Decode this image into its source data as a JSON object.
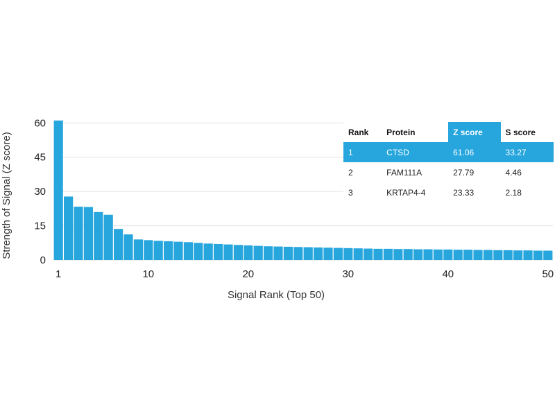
{
  "chart_data": {
    "type": "bar",
    "xlabel": "Signal Rank (Top 50)",
    "ylabel": "Strength of Signal (Z score)",
    "ylim": [
      0,
      61
    ],
    "xlim": [
      1,
      50
    ],
    "yticks": [
      0,
      15,
      30,
      45,
      60
    ],
    "xticks": [
      1,
      10,
      20,
      30,
      40,
      50
    ],
    "bar_color": "#27a6de",
    "grid": true,
    "x": [
      1,
      2,
      3,
      4,
      5,
      6,
      7,
      8,
      9,
      10,
      11,
      12,
      13,
      14,
      15,
      16,
      17,
      18,
      19,
      20,
      21,
      22,
      23,
      24,
      25,
      26,
      27,
      28,
      29,
      30,
      31,
      32,
      33,
      34,
      35,
      36,
      37,
      38,
      39,
      40,
      41,
      42,
      43,
      44,
      45,
      46,
      47,
      48,
      49,
      50
    ],
    "values": [
      61.06,
      27.79,
      23.33,
      23.2,
      21.0,
      19.8,
      13.6,
      11.2,
      9.0,
      8.7,
      8.4,
      8.2,
      8.0,
      7.8,
      7.5,
      7.2,
      7.0,
      6.8,
      6.6,
      6.4,
      6.2,
      6.0,
      5.9,
      5.8,
      5.7,
      5.6,
      5.5,
      5.4,
      5.3,
      5.2,
      5.1,
      5.0,
      4.9,
      4.9,
      4.8,
      4.8,
      4.7,
      4.7,
      4.6,
      4.6,
      4.5,
      4.5,
      4.4,
      4.4,
      4.3,
      4.3,
      4.2,
      4.2,
      4.1,
      4.1
    ]
  },
  "table": {
    "headers": [
      "Rank",
      "Protein",
      "Z score",
      "S score"
    ],
    "highlight_color": "#27a6de",
    "rows": [
      {
        "rank": "1",
        "protein": "CTSD",
        "z": "61.06",
        "s": "33.27"
      },
      {
        "rank": "2",
        "protein": "FAM111A",
        "z": "27.79",
        "s": "4.46"
      },
      {
        "rank": "3",
        "protein": "KRTAP4-4",
        "z": "23.33",
        "s": "2.18"
      }
    ]
  }
}
